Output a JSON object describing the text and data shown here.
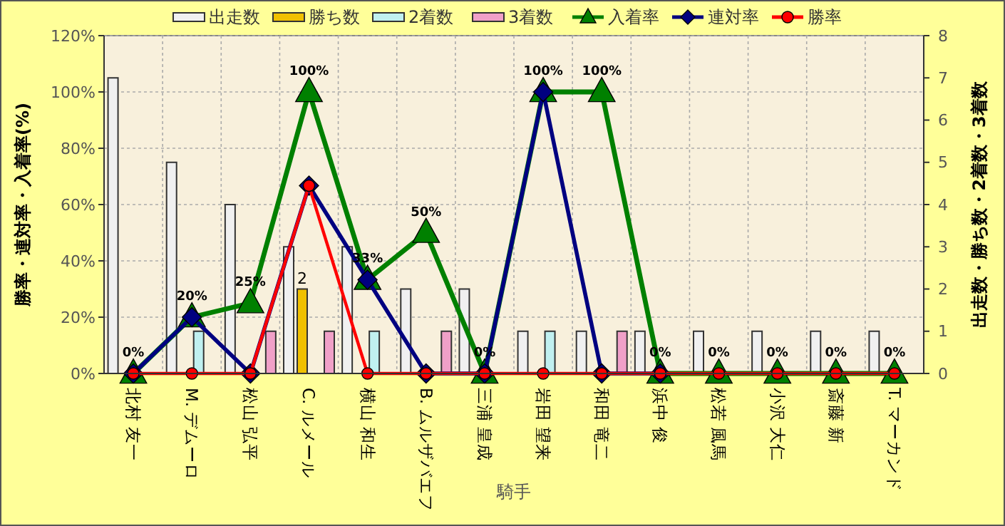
{
  "chart_data": {
    "type": "bar",
    "xlabel": "騎手",
    "ylabel": "勝率・連対率・入着率(%)",
    "y2label": "出走数・勝ち数・2着数・3着数",
    "categories": [
      "北村 友一",
      "M. デムーロ",
      "松山 弘平",
      "C. ルメール",
      "横山 和生",
      "B. ムルザバエフ",
      "三浦 皇成",
      "岩田 望来",
      "和田 竜二",
      "浜中 俊",
      "松若 風馬",
      "小沢 大仁",
      "斎藤 新",
      "T. マーカンド"
    ],
    "series": [
      {
        "name": "出走数",
        "axis": "y2",
        "color": "#f0f0f0",
        "values": [
          7,
          5,
          4,
          3,
          3,
          2,
          2,
          1,
          1,
          1,
          1,
          1,
          1,
          1
        ]
      },
      {
        "name": "勝ち数",
        "axis": "y2",
        "color": "#f0c000",
        "values": [
          0,
          0,
          0,
          2,
          0,
          0,
          0,
          0,
          0,
          0,
          0,
          0,
          0,
          0
        ],
        "value_labels": [
          null,
          null,
          null,
          "2",
          null,
          null,
          null,
          null,
          null,
          null,
          null,
          null,
          null,
          null
        ]
      },
      {
        "name": "2着数",
        "axis": "y2",
        "color": "#c0f0f0",
        "values": [
          0,
          1,
          0,
          0,
          1,
          0,
          0,
          1,
          0,
          0,
          0,
          0,
          0,
          0
        ]
      },
      {
        "name": "3着数",
        "axis": "y2",
        "color": "#f0a0c8",
        "values": [
          0,
          0,
          1,
          1,
          0,
          1,
          0,
          0,
          1,
          0,
          0,
          0,
          0,
          0
        ]
      },
      {
        "name": "入着率",
        "type": "line",
        "marker": "triangle",
        "color": "#008000",
        "values": [
          0,
          20,
          25,
          100,
          33.3,
          50,
          0,
          100,
          100,
          0,
          0,
          0,
          0,
          0
        ],
        "value_labels": [
          "0%",
          "20%",
          "25%",
          "100%",
          "33%",
          "50%",
          "0%",
          "100%",
          "100%",
          "0%",
          "0%",
          "0%",
          "0%",
          "0%"
        ]
      },
      {
        "name": "連対率",
        "type": "line",
        "marker": "diamond",
        "color": "#000080",
        "values": [
          0,
          20,
          0,
          66.7,
          33.3,
          0,
          0,
          100,
          0,
          0,
          null,
          null,
          null,
          null
        ]
      },
      {
        "name": "勝率",
        "type": "line",
        "marker": "circle",
        "color": "#ff0000",
        "values": [
          0,
          0,
          0,
          66.7,
          0,
          0,
          0,
          0,
          0,
          0,
          0,
          0,
          0,
          0
        ]
      }
    ],
    "ylim": [
      0,
      120
    ],
    "yticks": [
      {
        "value": 0,
        "label": "0%"
      },
      {
        "value": 20,
        "label": "20%"
      },
      {
        "value": 40,
        "label": "40%"
      },
      {
        "value": 60,
        "label": "60%"
      },
      {
        "value": 80,
        "label": "80%"
      },
      {
        "value": 100,
        "label": "100%"
      },
      {
        "value": 120,
        "label": "120%"
      }
    ],
    "y2lim": [
      0,
      8
    ],
    "y2ticks": [
      0,
      1,
      2,
      3,
      4,
      5,
      6,
      7,
      8
    ],
    "grid": true,
    "legend": "top"
  }
}
